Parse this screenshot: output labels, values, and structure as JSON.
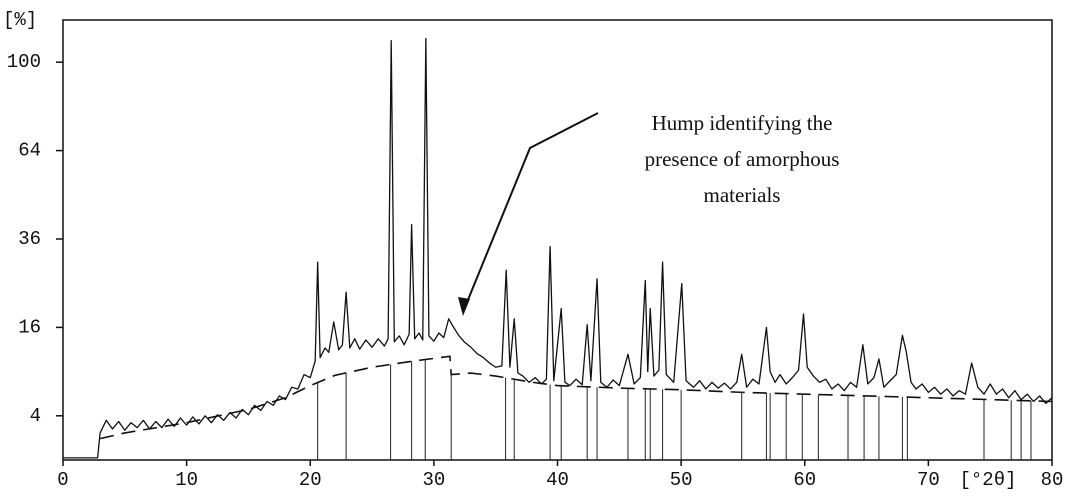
{
  "chart_data": {
    "type": "line",
    "y_label": "[%]",
    "x_label": "[°2θ]",
    "annotation": [
      "Hump identifying the",
      "presence of amorphous",
      "materials"
    ],
    "yscale": "sqrt",
    "ylim": [
      1,
      120
    ],
    "yticks": [
      4,
      16,
      36,
      64,
      100
    ],
    "xlim": [
      0,
      80
    ],
    "xticks": [
      0,
      10,
      20,
      30,
      40,
      50,
      60,
      70,
      80
    ],
    "grid": false,
    "series": [
      {
        "color": "#111111",
        "style": "solid",
        "x": [
          0,
          2.8,
          3,
          3.5,
          4,
          4.5,
          5,
          5.5,
          6,
          6.5,
          7,
          7.5,
          8,
          8.5,
          9,
          9.5,
          10,
          10.5,
          11,
          11.5,
          12,
          12.5,
          13,
          13.5,
          14,
          14.5,
          15,
          15.5,
          16,
          16.5,
          17,
          17.5,
          18,
          18.5,
          19,
          19.5,
          20,
          20.4,
          20.6,
          20.8,
          21.2,
          21.5,
          21.9,
          22.3,
          22.6,
          22.9,
          23.2,
          23.6,
          24,
          24.5,
          25,
          25.5,
          26,
          26.3,
          26.55,
          26.8,
          27.2,
          27.6,
          28,
          28.2,
          28.45,
          28.8,
          29.1,
          29.35,
          29.6,
          30,
          30.4,
          30.8,
          31.2,
          31.6,
          32,
          32.5,
          33,
          33.5,
          34,
          34.5,
          35,
          35.5,
          35.85,
          36.15,
          36.5,
          36.8,
          37.2,
          37.7,
          38.2,
          38.7,
          39.1,
          39.4,
          39.7,
          40.3,
          40.6,
          41,
          41.5,
          42,
          42.4,
          42.7,
          43.2,
          43.5,
          44,
          44.5,
          45,
          45.7,
          46.2,
          46.7,
          47.1,
          47.3,
          47.5,
          47.8,
          48.2,
          48.5,
          48.8,
          49.4,
          50.05,
          50.4,
          51,
          51.5,
          52,
          52.5,
          53,
          53.5,
          54,
          54.5,
          54.9,
          55.3,
          55.8,
          56.3,
          56.9,
          57.2,
          57.6,
          58,
          58.5,
          59,
          59.5,
          59.9,
          60.2,
          60.7,
          61.2,
          61.7,
          62.2,
          62.7,
          63.2,
          63.7,
          64.2,
          64.7,
          65.1,
          65.6,
          66.0,
          66.4,
          66.9,
          67.4,
          67.9,
          68.2,
          68.6,
          69,
          69.5,
          70,
          70.5,
          71,
          71.5,
          72,
          72.5,
          73,
          73.5,
          74,
          74.5,
          75,
          75.5,
          76,
          76.5,
          77,
          77.5,
          78,
          78.5,
          79,
          79.5,
          80
        ],
        "values": [
          1.1,
          1.1,
          2.6,
          3.6,
          2.9,
          3.5,
          2.8,
          3.4,
          3.0,
          3.6,
          2.9,
          3.5,
          3.0,
          3.7,
          3.1,
          3.8,
          3.2,
          3.9,
          3.3,
          4.0,
          3.4,
          4.1,
          3.6,
          4.3,
          3.8,
          4.6,
          4.1,
          5.0,
          4.5,
          5.4,
          5.0,
          6.0,
          5.6,
          7.0,
          6.8,
          8.6,
          8.2,
          10.5,
          30,
          11,
          12.5,
          11.8,
          17,
          12.2,
          13,
          23,
          12.5,
          14,
          12.3,
          13.8,
          12.6,
          14,
          12.8,
          14,
          110,
          13.5,
          14.5,
          13,
          14.8,
          40,
          14,
          15,
          13.8,
          111,
          14.5,
          13.6,
          15,
          14.2,
          17.6,
          16,
          14.6,
          13.4,
          12.6,
          11.6,
          11,
          10.2,
          9.6,
          9.8,
          28,
          9.6,
          17.6,
          8.8,
          8.4,
          7.6,
          8.2,
          7.4,
          8.0,
          34,
          7.8,
          19.6,
          7.6,
          7.2,
          8.0,
          7.3,
          16.5,
          7.8,
          26,
          7.6,
          7.0,
          7.9,
          7.2,
          11.5,
          7.4,
          8.2,
          25.6,
          9,
          19.6,
          8.4,
          9.2,
          30,
          8.6,
          7.6,
          24.9,
          7.8,
          7.0,
          7.8,
          6.8,
          7.6,
          6.9,
          7.5,
          6.8,
          7.6,
          11.5,
          7.0,
          8.0,
          7.4,
          16,
          9,
          7.6,
          8.6,
          7.4,
          8.2,
          9.2,
          18.5,
          9.6,
          8.4,
          7.6,
          8.0,
          6.8,
          7.4,
          6.6,
          7.6,
          7.0,
          13,
          7.4,
          8.2,
          10.8,
          7.0,
          7.8,
          8.6,
          14.6,
          12,
          7.6,
          6.8,
          7.4,
          6.4,
          7.0,
          6.2,
          6.8,
          6.0,
          6.6,
          6.2,
          10.2,
          7.0,
          6.2,
          7.4,
          6.2,
          6.8,
          5.8,
          6.6,
          5.6,
          6.2,
          5.4,
          6.0,
          5.2,
          5.8
        ]
      },
      {
        "color": "#111111",
        "style": "dashed",
        "x": [
          3,
          5,
          10,
          15,
          18,
          20,
          22,
          25,
          28,
          31.3,
          31.4,
          33,
          35,
          38,
          40,
          45,
          50,
          55,
          60,
          65,
          70,
          75,
          80
        ],
        "values": [
          2.2,
          2.6,
          3.4,
          4.6,
          5.8,
          7.2,
          8.5,
          9.6,
          10.4,
          11.2,
          8.6,
          8.8,
          8.4,
          7.6,
          7.2,
          6.9,
          6.7,
          6.4,
          6.2,
          6.0,
          5.8,
          5.6,
          5.4
        ]
      }
    ],
    "reference_lines": [
      20.6,
      22.9,
      26.5,
      28.2,
      29.3,
      31.4,
      35.8,
      36.5,
      39.4,
      40.3,
      42.4,
      43.2,
      45.7,
      47.1,
      47.5,
      48.5,
      50.0,
      54.9,
      56.9,
      57.2,
      58.5,
      59.8,
      61.1,
      63.5,
      64.8,
      66.0,
      67.9,
      68.3,
      74.5,
      76.7,
      77.5,
      78.3
    ]
  }
}
